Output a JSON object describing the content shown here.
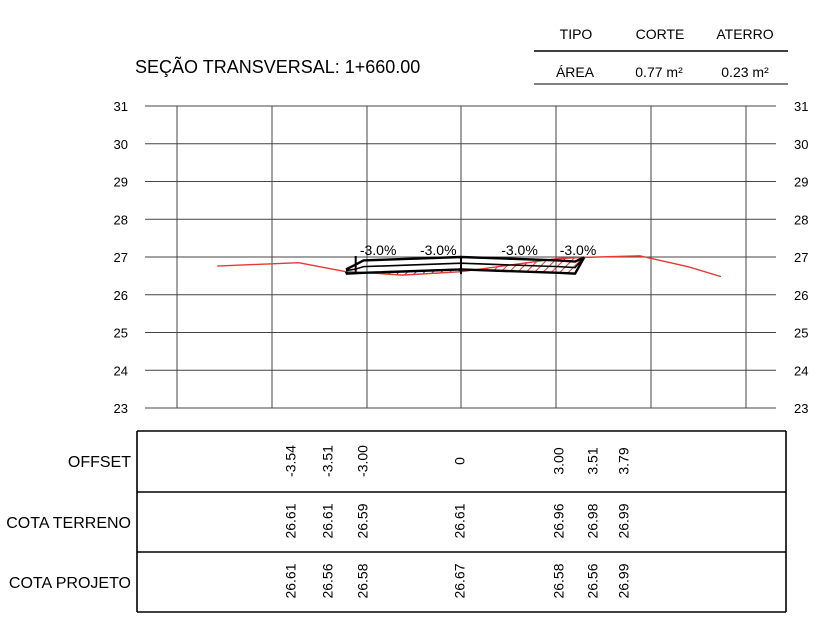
{
  "summary_table": {
    "headers": [
      "TIPO",
      "CORTE",
      "ATERRO"
    ],
    "row": [
      "ÁREA",
      "0.77 m²",
      "0.23 m²"
    ]
  },
  "section_title": "SEÇÃO TRANSVERSAL: 1+660.00",
  "row_labels": {
    "offset": "OFFSET",
    "terrain": "COTA TERRENO",
    "project": "COTA PROJETO"
  },
  "colors": {
    "terrain_line": "#e53935",
    "design_line": "#000000",
    "grid": "#444444",
    "fill_blue": "#2233cc",
    "fill_red": "#e53935"
  },
  "chart_data": {
    "type": "line",
    "ylim": [
      23,
      31
    ],
    "y_ticks": [
      "23",
      "24",
      "25",
      "26",
      "27",
      "28",
      "29",
      "30",
      "31"
    ],
    "grid": true,
    "slope_labels": [
      "-3.0%",
      "-3.0%",
      "-3.0%",
      "-3.0%"
    ],
    "terrain_profile": [
      [
        -7.5,
        26.76
      ],
      [
        -5,
        26.85
      ],
      [
        -3.54,
        26.61
      ],
      [
        -3.51,
        26.61
      ],
      [
        -3.0,
        26.59
      ],
      [
        -1.8,
        26.52
      ],
      [
        0,
        26.61
      ],
      [
        3.0,
        26.96
      ],
      [
        3.51,
        26.98
      ],
      [
        3.79,
        26.99
      ],
      [
        5.5,
        27.03
      ],
      [
        7.0,
        26.74
      ],
      [
        8.0,
        26.48
      ]
    ],
    "design_top": [
      [
        -3.54,
        26.67
      ],
      [
        -3.24,
        26.8
      ],
      [
        -3.0,
        26.91
      ],
      [
        0,
        27.0
      ],
      [
        3.0,
        26.91
      ],
      [
        3.51,
        26.88
      ],
      [
        3.79,
        26.99
      ]
    ],
    "design_base": [
      [
        -3.54,
        26.61
      ],
      [
        -3.51,
        26.56
      ],
      [
        -3.0,
        26.58
      ],
      [
        0,
        26.67
      ],
      [
        3.0,
        26.58
      ],
      [
        3.51,
        26.56
      ],
      [
        3.79,
        26.99
      ]
    ],
    "offsets": [
      "-3.54",
      "-3.51",
      "-3.00",
      "0",
      "3.00",
      "3.51",
      "3.79"
    ],
    "cota_terreno": [
      "26.61",
      "26.61",
      "26.59",
      "26.61",
      "26.96",
      "26.98",
      "26.99"
    ],
    "cota_projeto": [
      "26.61",
      "26.56",
      "26.58",
      "26.67",
      "26.58",
      "26.56",
      "26.99"
    ]
  }
}
